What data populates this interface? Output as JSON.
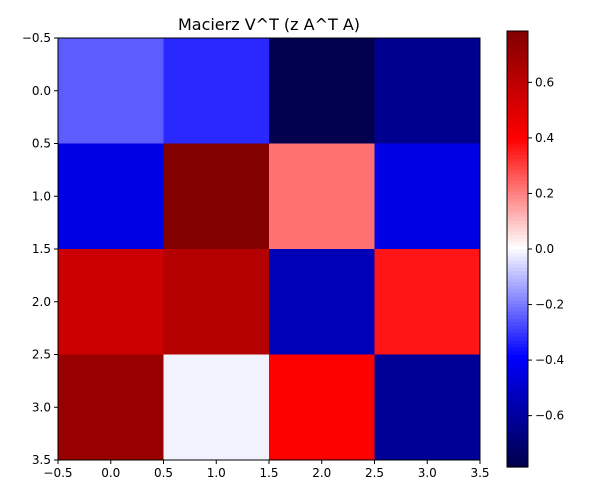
{
  "chart_data": {
    "type": "heatmap",
    "title": "Macierz V^T (z A^T A)",
    "xlabel": "",
    "ylabel": "",
    "rows": 4,
    "cols": 4,
    "values": [
      [
        -0.25,
        -0.33,
        -0.78,
        -0.64
      ],
      [
        -0.45,
        0.78,
        0.22,
        -0.45
      ],
      [
        0.55,
        0.62,
        -0.55,
        0.36
      ],
      [
        0.71,
        -0.02,
        0.4,
        -0.62
      ]
    ],
    "xlim": [
      -0.5,
      3.5
    ],
    "ylim": [
      3.5,
      -0.5
    ],
    "xticks": [
      "−0.5",
      "0.0",
      "0.5",
      "1.0",
      "1.5",
      "2.0",
      "2.5",
      "3.0",
      "3.5"
    ],
    "yticks": [
      "−0.5",
      "0.0",
      "0.5",
      "1.0",
      "1.5",
      "2.0",
      "2.5",
      "3.0",
      "3.5"
    ],
    "colorbar": {
      "cmap": "seismic",
      "vmin": -0.785,
      "vmax": 0.785,
      "ticks": [
        "0.6",
        "0.4",
        "0.2",
        "0.0",
        "−0.2",
        "−0.4",
        "−0.6"
      ]
    },
    "grid": false
  }
}
